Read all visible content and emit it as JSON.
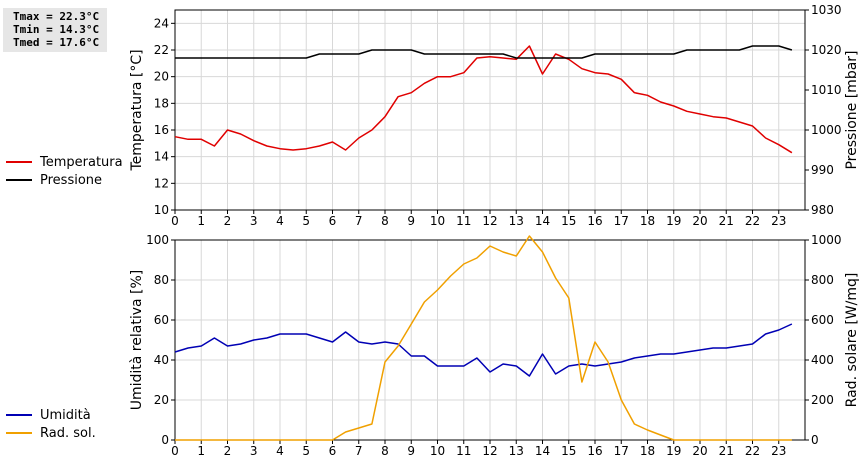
{
  "stats": {
    "tmax": "Tmax = 22.3°C",
    "tmin": "Tmin = 14.3°C",
    "tmed": "Tmed = 17.6°C"
  },
  "chart_data": [
    {
      "type": "line",
      "xlabel": "",
      "xlim": [
        0,
        24
      ],
      "x_ticks": [
        "0",
        "1",
        "2",
        "3",
        "4",
        "5",
        "6",
        "7",
        "8",
        "9",
        "10",
        "11",
        "12",
        "13",
        "14",
        "15",
        "16",
        "17",
        "18",
        "19",
        "20",
        "21",
        "22",
        "23"
      ],
      "ylabel": "Temperatura [°C]",
      "ylim": [
        10,
        25
      ],
      "y_ticks": [
        10,
        12,
        14,
        16,
        18,
        20,
        22,
        24
      ],
      "y2label": "Pressione [mbar]",
      "y2lim": [
        980,
        1030
      ],
      "y2_ticks": [
        980,
        990,
        1000,
        1010,
        1020,
        1030
      ],
      "grid": true,
      "legend": "left",
      "series": [
        {
          "name": "Temperatura",
          "axis": "left",
          "color": "#e00000",
          "x": [
            0,
            0.5,
            1,
            1.5,
            2,
            2.5,
            3,
            3.5,
            4,
            4.5,
            5,
            5.5,
            6,
            6.5,
            7,
            7.5,
            8,
            8.5,
            9,
            9.5,
            10,
            10.5,
            11,
            11.5,
            12,
            12.5,
            13,
            13.5,
            14,
            14.5,
            15,
            15.5,
            16,
            16.5,
            17,
            17.5,
            18,
            18.5,
            19,
            19.5,
            20,
            20.5,
            21,
            21.5,
            22,
            22.5,
            23,
            23.5
          ],
          "values": [
            15.5,
            15.3,
            15.3,
            14.8,
            16.0,
            15.7,
            15.2,
            14.8,
            14.6,
            14.5,
            14.6,
            14.8,
            15.1,
            14.5,
            15.4,
            16.0,
            17.0,
            18.5,
            18.8,
            19.5,
            20.0,
            20.0,
            20.3,
            21.4,
            21.5,
            21.4,
            21.3,
            22.3,
            20.2,
            21.7,
            21.3,
            20.6,
            20.3,
            20.2,
            19.8,
            18.8,
            18.6,
            18.1,
            17.8,
            17.4,
            17.2,
            17.0,
            16.9,
            16.6,
            16.3,
            15.4,
            14.9,
            14.3
          ]
        },
        {
          "name": "Pressione",
          "axis": "right",
          "color": "#000000",
          "x": [
            0,
            0.5,
            1,
            1.5,
            2,
            2.5,
            3,
            3.5,
            4,
            4.5,
            5,
            5.5,
            6,
            6.5,
            7,
            7.5,
            8,
            8.5,
            9,
            9.5,
            10,
            10.5,
            11,
            11.5,
            12,
            12.5,
            13,
            13.5,
            14,
            14.5,
            15,
            15.5,
            16,
            16.5,
            17,
            17.5,
            18,
            18.5,
            19,
            19.5,
            20,
            20.5,
            21,
            21.5,
            22,
            22.5,
            23,
            23.5
          ],
          "values": [
            1018,
            1018,
            1018,
            1018,
            1018,
            1018,
            1018,
            1018,
            1018,
            1018,
            1018,
            1019,
            1019,
            1019,
            1019,
            1020,
            1020,
            1020,
            1020,
            1019,
            1019,
            1019,
            1019,
            1019,
            1019,
            1019,
            1018,
            1018,
            1018,
            1018,
            1018,
            1018,
            1019,
            1019,
            1019,
            1019,
            1019,
            1019,
            1019,
            1020,
            1020,
            1020,
            1020,
            1020,
            1021,
            1021,
            1021,
            1020
          ]
        }
      ]
    },
    {
      "type": "line",
      "xlabel": "",
      "xlim": [
        0,
        24
      ],
      "x_ticks": [
        "0",
        "1",
        "2",
        "3",
        "4",
        "5",
        "6",
        "7",
        "8",
        "9",
        "10",
        "11",
        "12",
        "13",
        "14",
        "15",
        "16",
        "17",
        "18",
        "19",
        "20",
        "21",
        "22",
        "23"
      ],
      "ylabel": "Umidità relativa [%]",
      "ylim": [
        0,
        100
      ],
      "y_ticks": [
        0,
        20,
        40,
        60,
        80,
        100
      ],
      "y2label": "Rad. solare [W/mq]",
      "y2lim": [
        0,
        1000
      ],
      "y2_ticks": [
        0,
        200,
        400,
        600,
        800,
        1000
      ],
      "grid": true,
      "legend": "left",
      "series": [
        {
          "name": "Umidità",
          "axis": "left",
          "color": "#0000b4",
          "x": [
            0,
            0.5,
            1,
            1.5,
            2,
            2.5,
            3,
            3.5,
            4,
            4.5,
            5,
            5.5,
            6,
            6.5,
            7,
            7.5,
            8,
            8.5,
            9,
            9.5,
            10,
            10.5,
            11,
            11.5,
            12,
            12.5,
            13,
            13.5,
            14,
            14.5,
            15,
            15.5,
            16,
            16.5,
            17,
            17.5,
            18,
            18.5,
            19,
            19.5,
            20,
            20.5,
            21,
            21.5,
            22,
            22.5,
            23,
            23.5
          ],
          "values": [
            44,
            46,
            47,
            51,
            47,
            48,
            50,
            51,
            53,
            53,
            53,
            51,
            49,
            54,
            49,
            48,
            49,
            48,
            42,
            42,
            37,
            37,
            37,
            41,
            34,
            38,
            37,
            32,
            43,
            33,
            37,
            38,
            37,
            38,
            39,
            41,
            42,
            43,
            43,
            44,
            45,
            46,
            46,
            47,
            48,
            53,
            55,
            58
          ]
        },
        {
          "name": "Rad. sol.",
          "axis": "right",
          "color": "#f0a000",
          "x": [
            0,
            0.5,
            1,
            1.5,
            2,
            2.5,
            3,
            3.5,
            4,
            4.5,
            5,
            5.5,
            6,
            6.5,
            7,
            7.5,
            8,
            8.5,
            9,
            9.5,
            10,
            10.5,
            11,
            11.5,
            12,
            12.5,
            13,
            13.5,
            14,
            14.5,
            15,
            15.5,
            16,
            16.5,
            17,
            17.5,
            18,
            18.5,
            19,
            19.5,
            20,
            20.5,
            21,
            21.5,
            22,
            22.5,
            23,
            23.5
          ],
          "values": [
            0,
            0,
            0,
            0,
            0,
            0,
            0,
            0,
            0,
            0,
            0,
            0,
            0,
            40,
            60,
            80,
            390,
            470,
            580,
            690,
            750,
            820,
            880,
            910,
            970,
            940,
            920,
            1020,
            940,
            810,
            710,
            290,
            490,
            390,
            200,
            80,
            50,
            25,
            0,
            0,
            0,
            0,
            0,
            0,
            0,
            0,
            0,
            0
          ]
        }
      ]
    }
  ]
}
